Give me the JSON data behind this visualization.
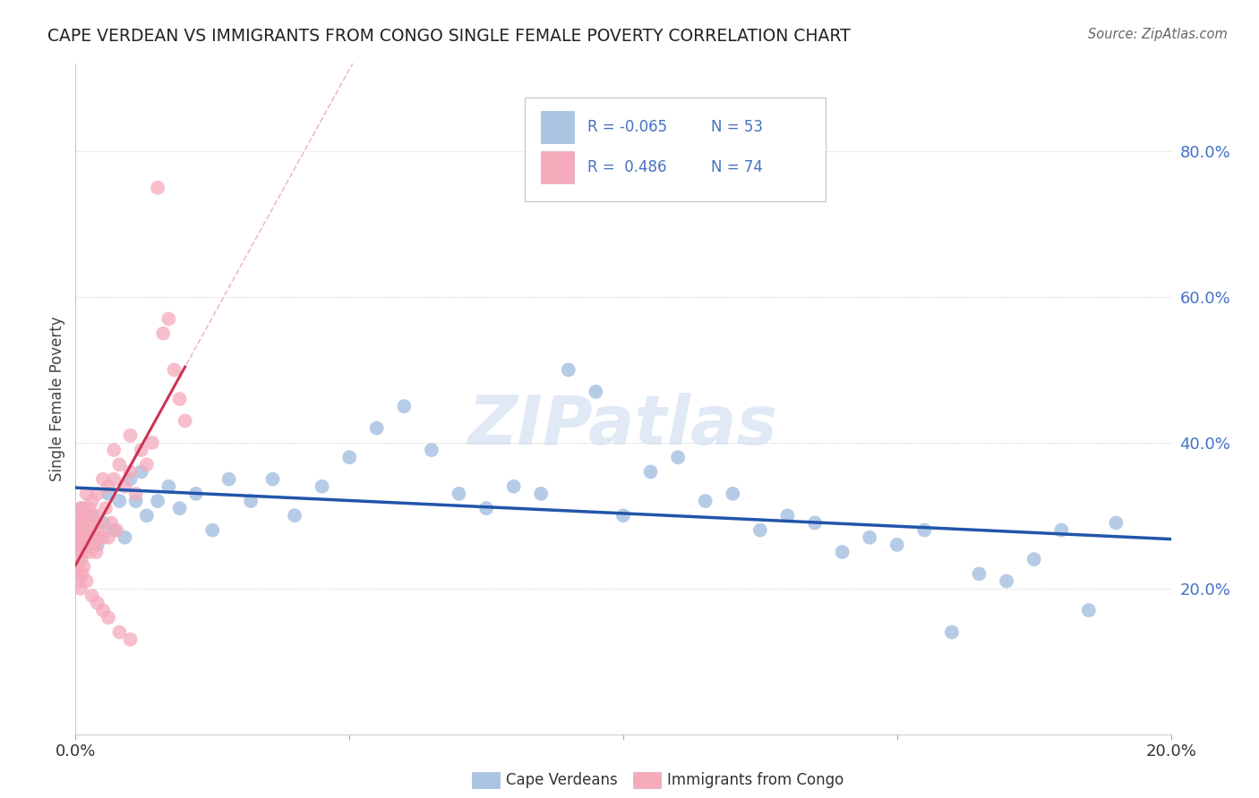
{
  "title": "CAPE VERDEAN VS IMMIGRANTS FROM CONGO SINGLE FEMALE POVERTY CORRELATION CHART",
  "source": "Source: ZipAtlas.com",
  "ylabel": "Single Female Poverty",
  "legend_blue_label": "Cape Verdeans",
  "legend_pink_label": "Immigrants from Congo",
  "R_blue": "-0.065",
  "N_blue": "53",
  "R_pink": "0.486",
  "N_pink": "74",
  "blue_color": "#aac4e2",
  "pink_color": "#f5aabb",
  "blue_line_color": "#2255aa",
  "pink_line_color": "#cc3355",
  "pink_dash_color": "#e8a0b0",
  "ylabel_right_values": [
    0.8,
    0.6,
    0.4,
    0.2
  ],
  "xmin": 0.0,
  "xmax": 0.2,
  "ymin": 0.0,
  "ymax": 0.92,
  "watermark": "ZIPatlas",
  "blue_scatter_x": [
    0.001,
    0.001,
    0.002,
    0.003,
    0.004,
    0.005,
    0.006,
    0.007,
    0.008,
    0.009,
    0.01,
    0.011,
    0.012,
    0.013,
    0.015,
    0.017,
    0.019,
    0.022,
    0.025,
    0.028,
    0.032,
    0.036,
    0.04,
    0.045,
    0.05,
    0.055,
    0.06,
    0.065,
    0.07,
    0.075,
    0.08,
    0.085,
    0.09,
    0.095,
    0.1,
    0.105,
    0.11,
    0.115,
    0.12,
    0.125,
    0.13,
    0.135,
    0.14,
    0.145,
    0.15,
    0.155,
    0.16,
    0.165,
    0.17,
    0.175,
    0.18,
    0.185,
    0.19
  ],
  "blue_scatter_y": [
    0.28,
    0.31,
    0.27,
    0.3,
    0.26,
    0.29,
    0.33,
    0.28,
    0.32,
    0.27,
    0.35,
    0.32,
    0.36,
    0.3,
    0.32,
    0.34,
    0.31,
    0.33,
    0.28,
    0.35,
    0.32,
    0.35,
    0.3,
    0.34,
    0.38,
    0.42,
    0.45,
    0.39,
    0.33,
    0.31,
    0.34,
    0.33,
    0.5,
    0.47,
    0.3,
    0.36,
    0.38,
    0.32,
    0.33,
    0.28,
    0.3,
    0.29,
    0.25,
    0.27,
    0.26,
    0.28,
    0.14,
    0.22,
    0.21,
    0.24,
    0.28,
    0.17,
    0.29
  ],
  "pink_scatter_x": [
    0.0003,
    0.0005,
    0.0006,
    0.0007,
    0.0008,
    0.0009,
    0.001,
    0.001,
    0.001,
    0.001,
    0.0012,
    0.0013,
    0.0014,
    0.0015,
    0.0016,
    0.0017,
    0.0018,
    0.0019,
    0.002,
    0.002,
    0.002,
    0.0022,
    0.0023,
    0.0024,
    0.0025,
    0.0026,
    0.0028,
    0.003,
    0.003,
    0.0032,
    0.0034,
    0.0036,
    0.0038,
    0.004,
    0.004,
    0.0042,
    0.0045,
    0.005,
    0.005,
    0.0055,
    0.006,
    0.006,
    0.0065,
    0.007,
    0.007,
    0.0075,
    0.008,
    0.009,
    0.01,
    0.01,
    0.011,
    0.012,
    0.013,
    0.014,
    0.015,
    0.016,
    0.017,
    0.018,
    0.019,
    0.02,
    0.0003,
    0.0005,
    0.0007,
    0.0009,
    0.001,
    0.0012,
    0.0015,
    0.002,
    0.003,
    0.004,
    0.005,
    0.006,
    0.008,
    0.01
  ],
  "pink_scatter_y": [
    0.26,
    0.27,
    0.28,
    0.26,
    0.29,
    0.25,
    0.28,
    0.3,
    0.26,
    0.31,
    0.27,
    0.29,
    0.3,
    0.25,
    0.31,
    0.27,
    0.28,
    0.26,
    0.3,
    0.27,
    0.33,
    0.27,
    0.26,
    0.28,
    0.31,
    0.25,
    0.27,
    0.29,
    0.32,
    0.27,
    0.26,
    0.3,
    0.25,
    0.29,
    0.33,
    0.27,
    0.28,
    0.35,
    0.27,
    0.31,
    0.34,
    0.27,
    0.29,
    0.39,
    0.35,
    0.28,
    0.37,
    0.34,
    0.41,
    0.36,
    0.33,
    0.39,
    0.37,
    0.4,
    0.75,
    0.55,
    0.57,
    0.5,
    0.46,
    0.43,
    0.22,
    0.23,
    0.21,
    0.2,
    0.24,
    0.22,
    0.23,
    0.21,
    0.19,
    0.18,
    0.17,
    0.16,
    0.14,
    0.13
  ]
}
